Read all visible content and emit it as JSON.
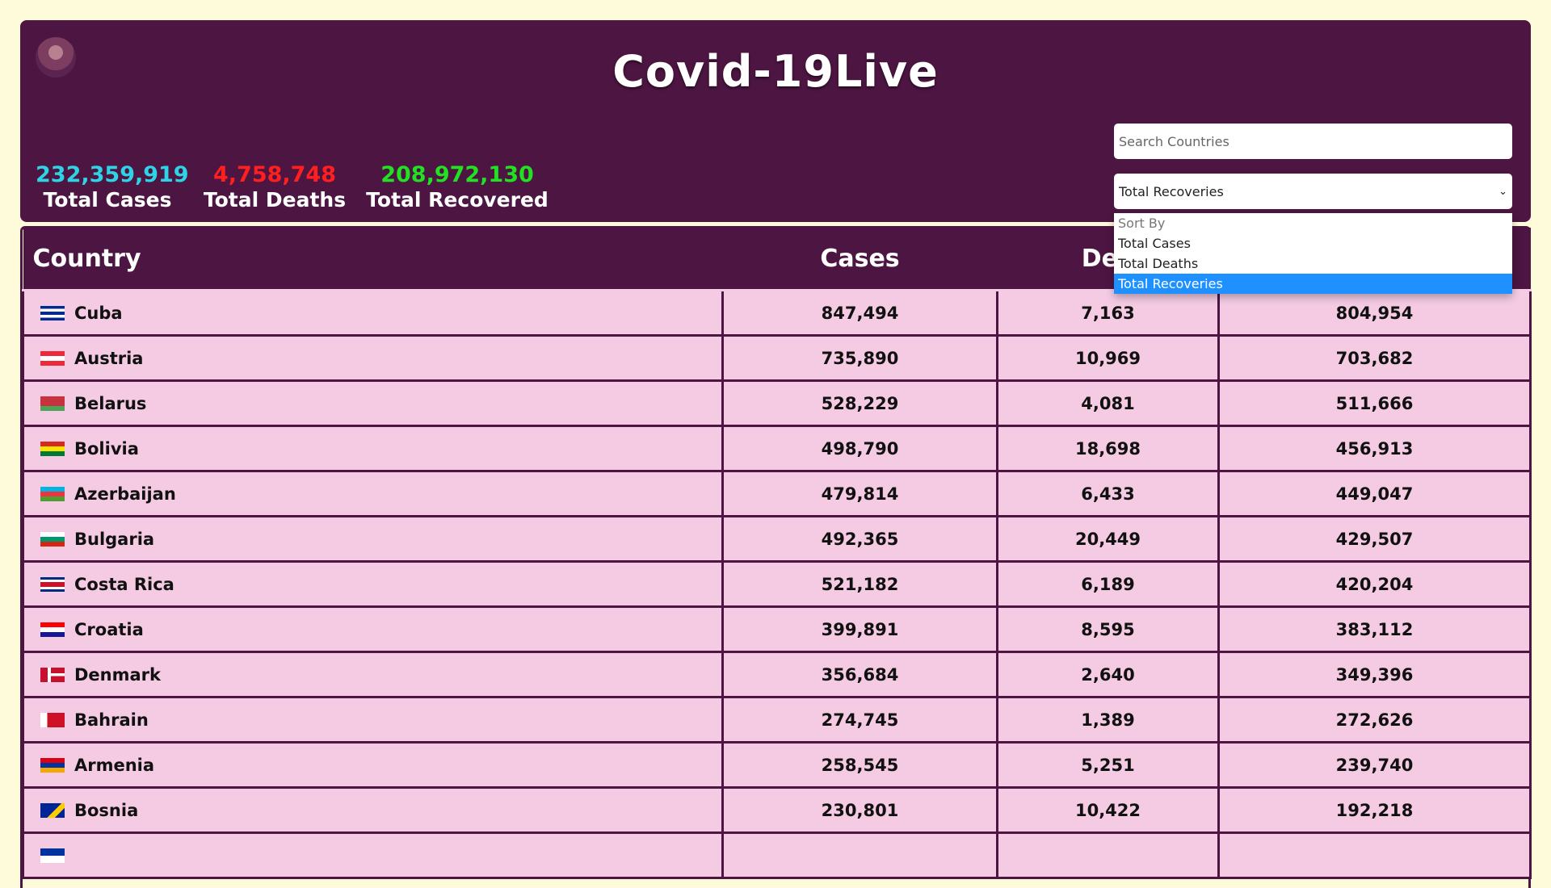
{
  "app": {
    "title": "Covid-19Live"
  },
  "stats": [
    {
      "value": "232,359,919",
      "label": "Total Cases",
      "color": "#2ed3e6"
    },
    {
      "value": "4,758,748",
      "label": "Total Deaths",
      "color": "#ff1f1f"
    },
    {
      "value": "208,972,130",
      "label": "Total Recovered",
      "color": "#22e022"
    }
  ],
  "search": {
    "placeholder": "Search Countries"
  },
  "sort": {
    "selected": "Total Recoveries",
    "options": [
      "Sort By",
      "Total Cases",
      "Total Deaths",
      "Total Recoveries"
    ]
  },
  "table": {
    "headers": [
      "Country",
      "Cases",
      "Dea"
    ],
    "rows": [
      {
        "country": "Cuba",
        "flag": "cuba",
        "cases": "847,494",
        "deaths": "7,163",
        "recovered": "804,954"
      },
      {
        "country": "Austria",
        "flag": "austria",
        "cases": "735,890",
        "deaths": "10,969",
        "recovered": "703,682"
      },
      {
        "country": "Belarus",
        "flag": "belarus",
        "cases": "528,229",
        "deaths": "4,081",
        "recovered": "511,666"
      },
      {
        "country": "Bolivia",
        "flag": "bolivia",
        "cases": "498,790",
        "deaths": "18,698",
        "recovered": "456,913"
      },
      {
        "country": "Azerbaijan",
        "flag": "azerbaijan",
        "cases": "479,814",
        "deaths": "6,433",
        "recovered": "449,047"
      },
      {
        "country": "Bulgaria",
        "flag": "bulgaria",
        "cases": "492,365",
        "deaths": "20,449",
        "recovered": "429,507"
      },
      {
        "country": "Costa Rica",
        "flag": "costa-rica",
        "cases": "521,182",
        "deaths": "6,189",
        "recovered": "420,204"
      },
      {
        "country": "Croatia",
        "flag": "croatia",
        "cases": "399,891",
        "deaths": "8,595",
        "recovered": "383,112"
      },
      {
        "country": "Denmark",
        "flag": "denmark",
        "cases": "356,684",
        "deaths": "2,640",
        "recovered": "349,396"
      },
      {
        "country": "Bahrain",
        "flag": "bahrain",
        "cases": "274,745",
        "deaths": "1,389",
        "recovered": "272,626"
      },
      {
        "country": "Armenia",
        "flag": "armenia",
        "cases": "258,545",
        "deaths": "5,251",
        "recovered": "239,740"
      },
      {
        "country": "Bosnia",
        "flag": "bosnia",
        "cases": "230,801",
        "deaths": "10,422",
        "recovered": "192,218"
      },
      {
        "country": "",
        "flag": "partial",
        "cases": "",
        "deaths": "",
        "recovered": ""
      }
    ]
  },
  "colors": {
    "header_bg": "#4d1542",
    "page_bg": "#fefbdb",
    "row_bg": "#f5cbe4",
    "selected_option": "#1e90ff"
  }
}
